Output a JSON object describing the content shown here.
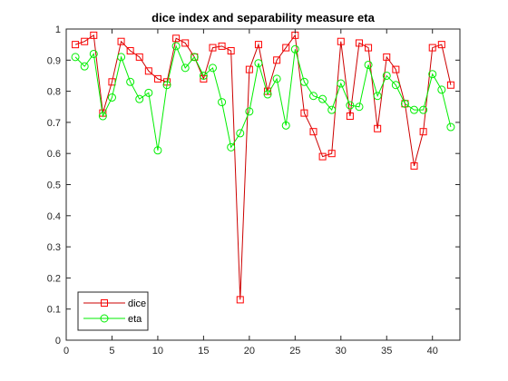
{
  "colors": {
    "dice": "#ff0000",
    "dice_line": "#cc0000",
    "eta": "#00ee00",
    "axis": "#262626"
  },
  "chart_data": {
    "type": "line",
    "title": "dice index and separability measure eta",
    "xlabel": "",
    "ylabel": "",
    "xlim": [
      0,
      43
    ],
    "ylim": [
      0,
      1
    ],
    "xticks": [
      0,
      5,
      10,
      15,
      20,
      25,
      30,
      35,
      40
    ],
    "yticks": [
      0,
      0.1,
      0.2,
      0.3,
      0.4,
      0.5,
      0.6,
      0.7,
      0.8,
      0.9,
      1
    ],
    "grid": false,
    "legend_position": "bottom-left",
    "x": [
      1,
      2,
      3,
      4,
      5,
      6,
      7,
      8,
      9,
      10,
      11,
      12,
      13,
      14,
      15,
      16,
      17,
      18,
      19,
      20,
      21,
      22,
      23,
      24,
      25,
      26,
      27,
      28,
      29,
      30,
      31,
      32,
      33,
      34,
      35,
      36,
      37,
      38,
      39,
      40,
      41,
      42
    ],
    "series": [
      {
        "name": "dice",
        "marker": "square",
        "values": [
          0.95,
          0.96,
          0.98,
          0.73,
          0.83,
          0.96,
          0.93,
          0.91,
          0.865,
          0.84,
          0.83,
          0.97,
          0.955,
          0.91,
          0.84,
          0.94,
          0.945,
          0.93,
          0.13,
          0.87,
          0.95,
          0.8,
          0.9,
          0.94,
          0.98,
          0.73,
          0.67,
          0.59,
          0.6,
          0.96,
          0.72,
          0.955,
          0.94,
          0.68,
          0.91,
          0.87,
          0.76,
          0.56,
          0.67,
          0.94,
          0.95,
          0.82
        ]
      },
      {
        "name": "eta",
        "marker": "circle",
        "values": [
          0.91,
          0.88,
          0.92,
          0.72,
          0.78,
          0.91,
          0.83,
          0.775,
          0.795,
          0.61,
          0.82,
          0.945,
          0.875,
          0.91,
          0.85,
          0.875,
          0.765,
          0.62,
          0.665,
          0.735,
          0.89,
          0.79,
          0.84,
          0.69,
          0.935,
          0.83,
          0.785,
          0.775,
          0.74,
          0.825,
          0.755,
          0.75,
          0.885,
          0.785,
          0.85,
          0.82,
          0.76,
          0.74,
          0.74,
          0.855,
          0.805,
          0.685
        ]
      }
    ]
  }
}
